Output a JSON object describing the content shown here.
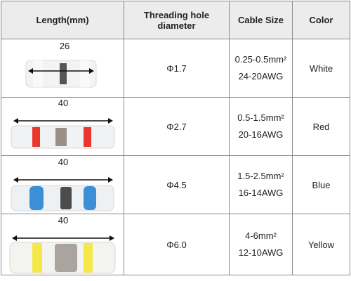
{
  "table": {
    "headers": [
      "Length(mm)",
      "Threading hole diameter",
      "Cable Size",
      "Color"
    ],
    "rows": [
      {
        "length": "26",
        "diameter": "Φ1.7",
        "cable_size": [
          "0.25-0.5mm²",
          "24-20AWG"
        ],
        "color": "White"
      },
      {
        "length": "40",
        "diameter": "Φ2.7",
        "cable_size": [
          "0.5-1.5mm²",
          "20-16AWG"
        ],
        "color": "Red"
      },
      {
        "length": "40",
        "diameter": "Φ4.5",
        "cable_size": [
          "1.5-2.5mm²",
          "16-14AWG"
        ],
        "color": "Blue"
      },
      {
        "length": "40",
        "diameter": "Φ6.0",
        "cable_size": [
          "4-6mm²",
          "12-10AWG"
        ],
        "color": "Yellow"
      }
    ]
  }
}
